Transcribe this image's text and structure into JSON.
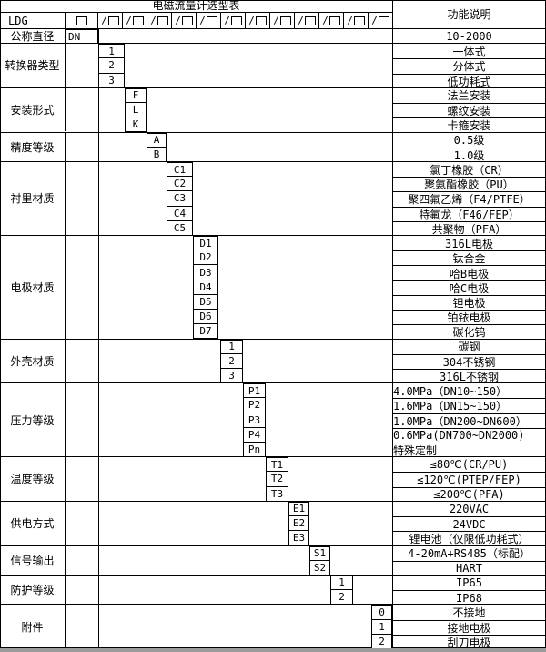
{
  "title": "电磁流量计选型表",
  "fn_header": "功能说明",
  "model_row": {
    "prefix": "LDG",
    "slash": "/",
    "slots": 12
  },
  "sections": [
    {
      "label": "公称直径",
      "rows": [
        {
          "code": "DN",
          "desc": "10-2000"
        }
      ]
    },
    {
      "label": "转换器类型",
      "rows": [
        {
          "code": "1",
          "desc": "一体式"
        },
        {
          "code": "2",
          "desc": "分体式"
        },
        {
          "code": "3",
          "desc": "低功耗式"
        }
      ]
    },
    {
      "label": "安装形式",
      "rows": [
        {
          "code": "F",
          "desc": "法兰安装"
        },
        {
          "code": "L",
          "desc": "螺纹安装"
        },
        {
          "code": "K",
          "desc": "卡箍安装"
        }
      ]
    },
    {
      "label": "精度等级",
      "rows": [
        {
          "code": "A",
          "desc": "0.5级"
        },
        {
          "code": "B",
          "desc": "1.0级"
        }
      ]
    },
    {
      "label": "衬里材质",
      "rows": [
        {
          "code": "C1",
          "desc": "氯丁橡胶（CR）"
        },
        {
          "code": "C2",
          "desc": "聚氨酯橡胶（PU）"
        },
        {
          "code": "C3",
          "desc": "聚四氟乙烯（F4/PTFE）"
        },
        {
          "code": "C4",
          "desc": "特氟龙（F46/FEP）"
        },
        {
          "code": "C5",
          "desc": "共聚物（PFA）"
        }
      ]
    },
    {
      "label": "电极材质",
      "rows": [
        {
          "code": "D1",
          "desc": "316L电极"
        },
        {
          "code": "D2",
          "desc": "钛合金"
        },
        {
          "code": "D3",
          "desc": "哈B电极"
        },
        {
          "code": "D4",
          "desc": "哈C电极"
        },
        {
          "code": "D5",
          "desc": "钽电极"
        },
        {
          "code": "D6",
          "desc": "铂铱电极"
        },
        {
          "code": "D7",
          "desc": "碳化钨"
        }
      ]
    },
    {
      "label": "外壳材质",
      "rows": [
        {
          "code": "1",
          "desc": "碳钢"
        },
        {
          "code": "2",
          "desc": "304不锈钢"
        },
        {
          "code": "3",
          "desc": "316L不锈钢"
        }
      ]
    },
    {
      "label": "压力等级",
      "rows": [
        {
          "code": "P1",
          "desc": "4.0MPa（DN10~150）"
        },
        {
          "code": "P2",
          "desc": "1.6MPa（DN15~150）"
        },
        {
          "code": "P3",
          "desc": "1.0MPa（DN200~DN600）"
        },
        {
          "code": "P4",
          "desc": "0.6MPa(DN700~DN2000)"
        },
        {
          "code": "Pn",
          "desc": "特殊定制"
        }
      ]
    },
    {
      "label": "温度等级",
      "rows": [
        {
          "code": "T1",
          "desc": "≤80℃(CR/PU)"
        },
        {
          "code": "T2",
          "desc": "≤120℃(PTEP/FEP)"
        },
        {
          "code": "T3",
          "desc": "≤200℃(PFA)"
        }
      ]
    },
    {
      "label": "供电方式",
      "rows": [
        {
          "code": "E1",
          "desc": "220VAC"
        },
        {
          "code": "E2",
          "desc": "24VDC"
        },
        {
          "code": "E3",
          "desc": "锂电池（仅限低功耗式）"
        }
      ]
    },
    {
      "label": "信号输出",
      "rows": [
        {
          "code": "S1",
          "desc": "4-20mA+RS485（标配）"
        },
        {
          "code": "S2",
          "desc": "HART"
        }
      ]
    },
    {
      "label": "防护等级",
      "rows": [
        {
          "code": "1",
          "desc": "IP65"
        },
        {
          "code": "2",
          "desc": "IP68"
        }
      ]
    },
    {
      "label": "附件",
      "rows": [
        {
          "code": "0",
          "desc": "不接地"
        },
        {
          "code": "1",
          "desc": "接地电极"
        },
        {
          "code": "2",
          "desc": "刮刀电极"
        }
      ]
    }
  ],
  "colors": {
    "border": "#000000",
    "background": "#ffffff",
    "bottom_bar": "#9b9b9b"
  }
}
